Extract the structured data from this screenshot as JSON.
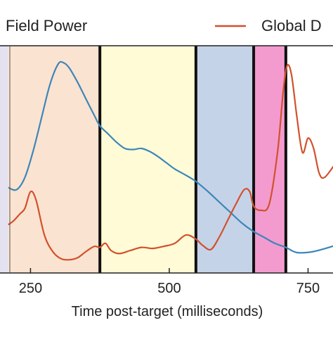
{
  "chart_data": {
    "type": "line",
    "xlabel": "Time post-target (milliseconds)",
    "ylabel": "",
    "xlim": [
      190,
      800
    ],
    "ylim": [
      0,
      1
    ],
    "grid": false,
    "legend_placement": "top",
    "x_ticks": [
      {
        "value": 250,
        "label": "250"
      },
      {
        "value": 500,
        "label": "500"
      },
      {
        "value": 750,
        "label": "750"
      }
    ],
    "boundaries": [
      375,
      548,
      652,
      710
    ],
    "regions": [
      {
        "start": 190,
        "end": 210,
        "color": "#e4e2f1"
      },
      {
        "start": 210,
        "end": 375,
        "color": "#fbe3d1"
      },
      {
        "start": 375,
        "end": 548,
        "color": "#fefbd6"
      },
      {
        "start": 548,
        "end": 652,
        "color": "#c5d3e8"
      },
      {
        "start": 652,
        "end": 710,
        "color": "#f39bcf"
      }
    ],
    "series": [
      {
        "name": "Field Power",
        "color": "#3d87b8",
        "x": [
          210,
          225,
          240,
          255,
          270,
          285,
          300,
          310,
          320,
          335,
          350,
          365,
          375,
          390,
          405,
          420,
          435,
          450,
          465,
          480,
          495,
          510,
          530,
          548,
          570,
          590,
          610,
          630,
          650,
          670,
          690,
          710,
          730,
          760,
          800
        ],
        "y": [
          0.38,
          0.37,
          0.43,
          0.56,
          0.72,
          0.88,
          0.98,
          0.985,
          0.96,
          0.89,
          0.81,
          0.73,
          0.68,
          0.64,
          0.6,
          0.57,
          0.565,
          0.57,
          0.555,
          0.53,
          0.5,
          0.47,
          0.44,
          0.41,
          0.36,
          0.31,
          0.26,
          0.21,
          0.17,
          0.14,
          0.11,
          0.09,
          0.065,
          0.07,
          0.1
        ]
      },
      {
        "name": "Global D",
        "color": "#d2512c",
        "x": [
          210,
          220,
          230,
          240,
          250,
          260,
          275,
          290,
          305,
          320,
          335,
          350,
          365,
          375,
          385,
          395,
          410,
          430,
          450,
          470,
          490,
          510,
          530,
          548,
          560,
          575,
          590,
          605,
          620,
          635,
          645,
          652,
          665,
          680,
          695,
          705,
          712,
          720,
          730,
          740,
          750,
          760,
          770,
          780,
          800
        ],
        "y": [
          0.2,
          0.22,
          0.25,
          0.28,
          0.36,
          0.32,
          0.15,
          0.07,
          0.035,
          0.03,
          0.04,
          0.07,
          0.095,
          0.09,
          0.11,
          0.075,
          0.06,
          0.075,
          0.09,
          0.085,
          0.095,
          0.11,
          0.15,
          0.13,
          0.1,
          0.08,
          0.14,
          0.22,
          0.3,
          0.37,
          0.36,
          0.29,
          0.27,
          0.3,
          0.55,
          0.84,
          0.97,
          0.93,
          0.72,
          0.55,
          0.62,
          0.57,
          0.45,
          0.43,
          0.5
        ]
      }
    ]
  }
}
